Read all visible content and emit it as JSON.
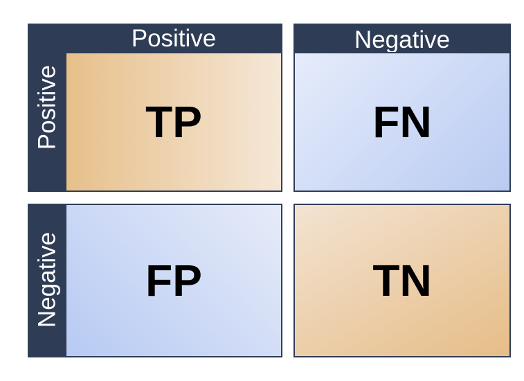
{
  "column_headers": [
    "Positive",
    "Negative"
  ],
  "row_headers": [
    "Positive",
    "Negative"
  ],
  "cells": {
    "top_left": "TP",
    "top_right": "FN",
    "bottom_left": "FP",
    "bottom_right": "TN"
  },
  "colors": {
    "header": "#2f3c55",
    "orange": "#e7c08a",
    "blue": "#b9cbf2"
  }
}
